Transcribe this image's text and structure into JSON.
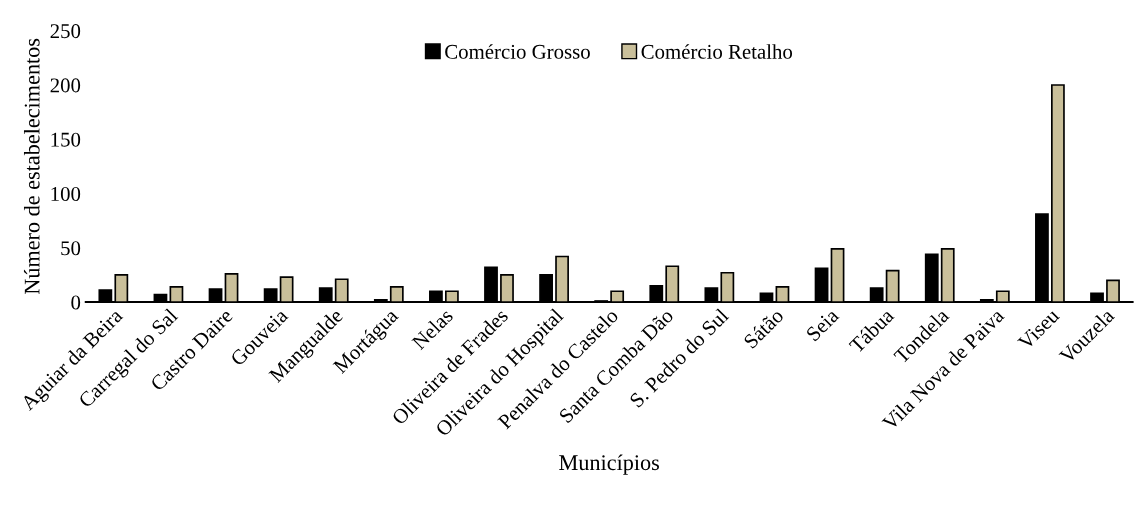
{
  "chart_data": {
    "type": "bar",
    "xlabel": "Municípios",
    "ylabel": "Número de estabelecimentos",
    "categories": [
      "Aguiar da Beira",
      "Carregal do Sal",
      "Castro Daire",
      "Gouveia",
      "Mangualde",
      "Mortágua",
      "Nelas",
      "Oliveira de Frades",
      "Oliveira do Hospital",
      "Penalva do Castelo",
      "Santa Comba Dão",
      "S. Pedro do Sul",
      "Sátão",
      "Seia",
      "Tábua",
      "Tondela",
      "Vila Nova de Paiva",
      "Viseu",
      "Vouzela"
    ],
    "series": [
      {
        "name": "Comércio Grosso",
        "color": "#000000",
        "values": [
          11,
          7,
          12,
          12,
          13,
          2,
          10,
          32,
          25,
          1,
          15,
          13,
          8,
          31,
          13,
          44,
          2,
          81,
          8
        ]
      },
      {
        "name": "Comércio Retalho",
        "color": "#c9bf9a",
        "values": [
          25,
          14,
          26,
          23,
          21,
          14,
          10,
          25,
          42,
          10,
          33,
          27,
          14,
          49,
          29,
          49,
          10,
          200,
          20
        ]
      }
    ],
    "ylim": [
      0,
      250
    ],
    "yticks": [
      0,
      50,
      100,
      150,
      200,
      250
    ],
    "grid": false,
    "legend": "top"
  }
}
